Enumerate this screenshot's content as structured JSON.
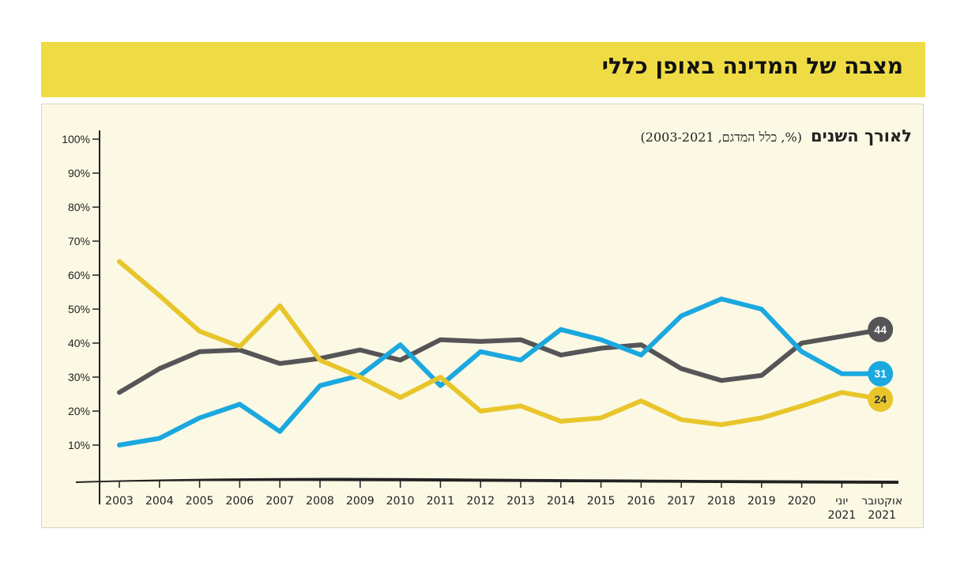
{
  "header": {
    "title": "מצבה של המדינה באופן כללי"
  },
  "chart_data": {
    "type": "line",
    "title": "לאורך השנים",
    "subtitle": "(%, כלל המדגם, 2003-2021)",
    "categories": [
      "2003",
      "2004",
      "2005",
      "2006",
      "2007",
      "2008",
      "2009",
      "2010",
      "2011",
      "2012",
      "2013",
      "2014",
      "2015",
      "2016",
      "2017",
      "2018",
      "2019",
      "2020",
      "יוני 2021",
      "אוקטובר 2021"
    ],
    "ylim": [
      0,
      100
    ],
    "yticks": [
      "10%",
      "20%",
      "30%",
      "40%",
      "50%",
      "60%",
      "70%",
      "80%",
      "90%",
      "100%"
    ],
    "series": [
      {
        "color": "#555557",
        "values": [
          25.5,
          32.5,
          37.5,
          38,
          34,
          35.5,
          38,
          35,
          41,
          40.5,
          41,
          36.5,
          38.5,
          39.5,
          32.5,
          29,
          30.5,
          40,
          42,
          44
        ],
        "end_label": "44"
      },
      {
        "color": "#1ba8df",
        "values": [
          10,
          12,
          18,
          22,
          14,
          27.5,
          30.5,
          39.5,
          27.5,
          37.5,
          35,
          44,
          41,
          36.5,
          48,
          53,
          50,
          37.5,
          31,
          31
        ],
        "end_label": "31"
      },
      {
        "color": "#e8c62b",
        "values": [
          64,
          54,
          43.5,
          39,
          51,
          35,
          30,
          24,
          30,
          20,
          21.5,
          17,
          18,
          23,
          17.5,
          16,
          18,
          21.5,
          25.5,
          23.5
        ],
        "end_label": "24"
      }
    ]
  }
}
